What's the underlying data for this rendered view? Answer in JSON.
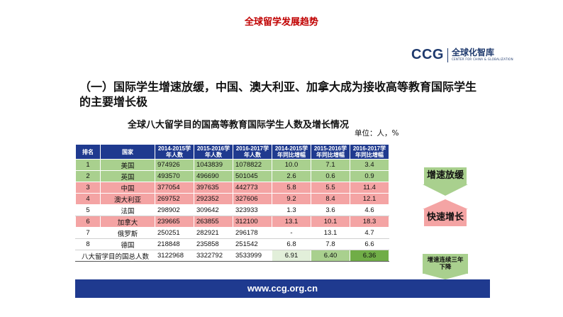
{
  "page_title": "全球留学发展趋势",
  "logo": {
    "brand": "CCG",
    "cn": "全球化智库",
    "en": "CENTER FOR CHINA & GLOBALIZATION"
  },
  "headline": "（一）国际学生增速放缓，中国、澳大利亚、加拿大成为接收高等教育国际学生的主要增长极",
  "table_title": "全球八大留学目的国高等教育国际学生人数及增长情况",
  "unit": "单位：人，%",
  "columns": [
    "排名",
    "国家",
    "2014-2015学年人数",
    "2015-2016学年人数",
    "2016-2017学年人数",
    "2014-2015学年同比增幅",
    "2015-2016学年同比增幅",
    "2016-2017学年同比增幅"
  ],
  "rows": [
    {
      "rank": "1",
      "country": "美国",
      "v1": "974926",
      "v2": "1043839",
      "v3": "1078822",
      "g1": "10.0",
      "g2": "7.1",
      "g3": "3.4"
    },
    {
      "rank": "2",
      "country": "英国",
      "v1": "493570",
      "v2": "496690",
      "v3": "501045",
      "g1": "2.6",
      "g2": "0.6",
      "g3": "0.9"
    },
    {
      "rank": "3",
      "country": "中国",
      "v1": "377054",
      "v2": "397635",
      "v3": "442773",
      "g1": "5.8",
      "g2": "5.5",
      "g3": "11.4"
    },
    {
      "rank": "4",
      "country": "澳大利亚",
      "v1": "269752",
      "v2": "292352",
      "v3": "327606",
      "g1": "9.2",
      "g2": "8.4",
      "g3": "12.1"
    },
    {
      "rank": "5",
      "country": "法国",
      "v1": "298902",
      "v2": "309642",
      "v3": "323933",
      "g1": "1.3",
      "g2": "3.6",
      "g3": "4.6"
    },
    {
      "rank": "6",
      "country": "加拿大",
      "v1": "239665",
      "v2": "263855",
      "v3": "312100",
      "g1": "13.1",
      "g2": "10.1",
      "g3": "18.3"
    },
    {
      "rank": "7",
      "country": "俄罗斯",
      "v1": "250251",
      "v2": "282921",
      "v3": "296178",
      "g1": "-",
      "g2": "13.1",
      "g3": "4.7"
    },
    {
      "rank": "8",
      "country": "德国",
      "v1": "218848",
      "v2": "235858",
      "v3": "251542",
      "g1": "6.8",
      "g2": "7.8",
      "g3": "6.6"
    }
  ],
  "total": {
    "label": "八大留学目的国总人数",
    "v1": "3122968",
    "v2": "3322792",
    "v3": "3533999",
    "g1": "6.91",
    "g2": "6.40",
    "g3": "6.36"
  },
  "annotations": {
    "slowdown": "增速放缓",
    "fast_growth": "快速增长",
    "three_year_decline": "增速连续三年下降"
  },
  "footer_url": "www.ccg.org.cn",
  "colors": {
    "header_blue": "#1f3a8f",
    "green_row": "#a9d08e",
    "red_row": "#f4a4a4",
    "title_red": "#c00000"
  }
}
